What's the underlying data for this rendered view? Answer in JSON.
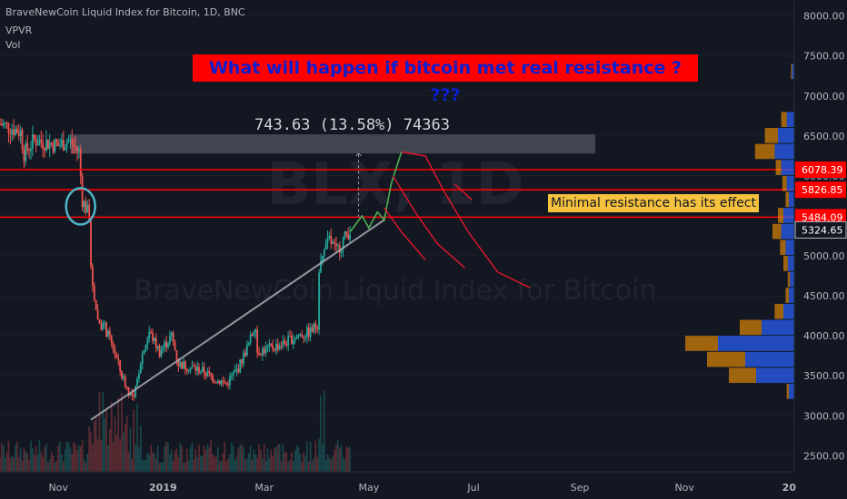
{
  "header": {
    "symbol": "BraveNewCoin Liquid Index for Bitcoin, 1D, BNC",
    "indicator1": "VPVR",
    "indicator2": "Vol"
  },
  "annotations": {
    "title": "What will happen if bitcoin met real resistance ? ???",
    "note": "Minimal resistance has its effect",
    "measure": "743.63 (13.58%) 74363"
  },
  "colors": {
    "background": "#131722",
    "up": "#26a69a",
    "down": "#ef5350",
    "resistance": "#ff0000",
    "title_bg": "#ff0000",
    "title_text": "#0b1fd0",
    "note_bg": "#f5c23e",
    "vp_blue": "#2962ff",
    "vp_orange": "#ff9800",
    "projection_green": "#4caf50",
    "projection_red": "#ff1744",
    "trendline": "#b2b5be",
    "resistance_zone": "#4a4e5a"
  },
  "chart_data": {
    "type": "candlestick",
    "watermark": "BLX, 1D",
    "watermark_sub": "BraveNewCoin Liquid Index for Bitcoin",
    "x_ticks": [
      "Nov",
      "2019",
      "Mar",
      "May",
      "Jul",
      "Sep",
      "Nov",
      "20"
    ],
    "y_ticks": [
      2500,
      3000,
      3500,
      4000,
      4500,
      5000,
      5500,
      6000,
      6500,
      7000,
      7500,
      8000
    ],
    "y_tick_labels": [
      "2500.00",
      "3000.00",
      "3500.00",
      "4000.00",
      "4500.00",
      "5000.00",
      "5500.00",
      "6000.00",
      "6500.00",
      "7000.00",
      "7500.00",
      "8000.00"
    ],
    "ylim": [
      2300,
      8200
    ],
    "x_start": "2018-09-28",
    "x_end": "2020-01-04",
    "resistance_levels": [
      6078.39,
      5826.85,
      5484.09
    ],
    "last_price": 5324.65,
    "price_labels": [
      "6078.39",
      "5826.85",
      "5484.09",
      "5324.65"
    ],
    "resistance_zone": {
      "from": "2018-11-08",
      "to": "2019-09-10",
      "low": 6280,
      "high": 6520
    },
    "trendline": {
      "start": [
        "2018-11-20",
        2950
      ],
      "end": [
        "2019-05-10",
        5450
      ]
    },
    "price_path": [
      [
        "2018-09-28",
        6650
      ],
      [
        "2018-10-05",
        6600
      ],
      [
        "2018-10-10",
        6550
      ],
      [
        "2018-10-12",
        6280
      ],
      [
        "2018-10-18",
        6450
      ],
      [
        "2018-10-25",
        6420
      ],
      [
        "2018-11-01",
        6380
      ],
      [
        "2018-11-07",
        6450
      ],
      [
        "2018-11-13",
        6300
      ],
      [
        "2018-11-15",
        5700
      ],
      [
        "2018-11-19",
        5500
      ],
      [
        "2018-11-20",
        4800
      ],
      [
        "2018-11-24",
        4200
      ],
      [
        "2018-11-28",
        4100
      ],
      [
        "2018-12-03",
        3850
      ],
      [
        "2018-12-08",
        3500
      ],
      [
        "2018-12-12",
        3300
      ],
      [
        "2018-12-15",
        3200
      ],
      [
        "2018-12-19",
        3700
      ],
      [
        "2018-12-24",
        4050
      ],
      [
        "2018-12-30",
        3800
      ],
      [
        "2019-01-06",
        4000
      ],
      [
        "2019-01-10",
        3650
      ],
      [
        "2019-01-18",
        3600
      ],
      [
        "2019-01-25",
        3550
      ],
      [
        "2019-02-01",
        3450
      ],
      [
        "2019-02-07",
        3400
      ],
      [
        "2019-02-14",
        3600
      ],
      [
        "2019-02-20",
        3900
      ],
      [
        "2019-02-24",
        4150
      ],
      [
        "2019-02-25",
        3800
      ],
      [
        "2019-03-05",
        3850
      ],
      [
        "2019-03-12",
        3900
      ],
      [
        "2019-03-20",
        4000
      ],
      [
        "2019-03-28",
        4050
      ],
      [
        "2019-04-01",
        4150
      ],
      [
        "2019-04-02",
        4850
      ],
      [
        "2019-04-05",
        5050
      ],
      [
        "2019-04-08",
        5200
      ],
      [
        "2019-04-12",
        5050
      ],
      [
        "2019-04-16",
        5200
      ],
      [
        "2019-04-20",
        5324.65
      ]
    ],
    "projection_green": [
      [
        "2019-04-20",
        5300
      ],
      [
        "2019-04-27",
        5500
      ],
      [
        "2019-05-01",
        5350
      ],
      [
        "2019-05-06",
        5550
      ],
      [
        "2019-05-10",
        5450
      ],
      [
        "2019-05-14",
        5900
      ],
      [
        "2019-05-20",
        6300
      ]
    ],
    "projection_red": [
      [
        [
          "2019-05-20",
          6300
        ],
        [
          "2019-06-03",
          6250
        ],
        [
          "2019-06-14",
          5800
        ],
        [
          "2019-06-28",
          5300
        ],
        [
          "2019-07-15",
          4800
        ],
        [
          "2019-08-03",
          4600
        ]
      ],
      [
        [
          "2019-05-15",
          6000
        ],
        [
          "2019-05-28",
          5550
        ],
        [
          "2019-06-10",
          5150
        ],
        [
          "2019-06-26",
          4850
        ]
      ],
      [
        [
          "2019-05-10",
          5600
        ],
        [
          "2019-05-20",
          5300
        ],
        [
          "2019-06-03",
          4950
        ]
      ],
      [
        [
          "2019-06-20",
          5900
        ],
        [
          "2019-06-30",
          5700
        ]
      ]
    ],
    "volume_profile": [
      {
        "price": 3300,
        "buy": 0.05,
        "sell": 0.02
      },
      {
        "price": 3500,
        "buy": 0.35,
        "sell": 0.25
      },
      {
        "price": 3700,
        "buy": 0.45,
        "sell": 0.35
      },
      {
        "price": 3900,
        "buy": 0.7,
        "sell": 0.3
      },
      {
        "price": 4100,
        "buy": 0.3,
        "sell": 0.2
      },
      {
        "price": 4300,
        "buy": 0.1,
        "sell": 0.08
      },
      {
        "price": 4500,
        "buy": 0.05,
        "sell": 0.03
      },
      {
        "price": 4700,
        "buy": 0.04,
        "sell": 0.02
      },
      {
        "price": 4900,
        "buy": 0.06,
        "sell": 0.04
      },
      {
        "price": 5100,
        "buy": 0.08,
        "sell": 0.05
      },
      {
        "price": 5300,
        "buy": 0.12,
        "sell": 0.08
      },
      {
        "price": 5500,
        "buy": 0.1,
        "sell": 0.05
      },
      {
        "price": 5700,
        "buy": 0.05,
        "sell": 0.03
      },
      {
        "price": 5900,
        "buy": 0.07,
        "sell": 0.04
      },
      {
        "price": 6100,
        "buy": 0.12,
        "sell": 0.05
      },
      {
        "price": 6300,
        "buy": 0.18,
        "sell": 0.18
      },
      {
        "price": 6500,
        "buy": 0.15,
        "sell": 0.12
      },
      {
        "price": 6700,
        "buy": 0.07,
        "sell": 0.05
      },
      {
        "price": 7300,
        "buy": 0.02,
        "sell": 0.01
      }
    ]
  }
}
